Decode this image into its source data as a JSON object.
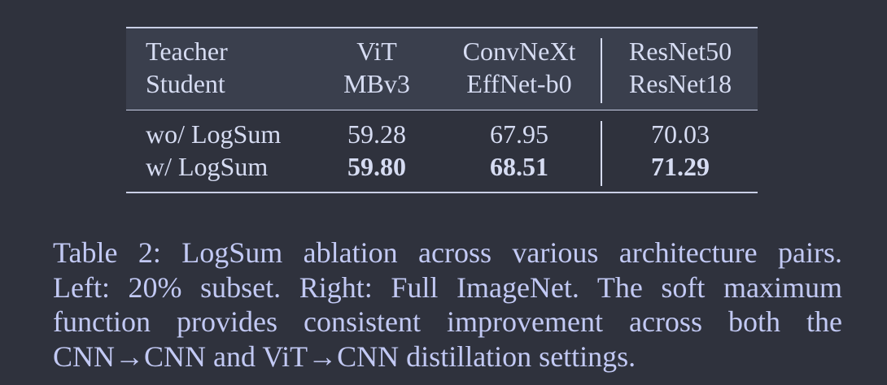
{
  "table": {
    "header": {
      "teacher_label": "Teacher",
      "student_label": "Student",
      "columns": [
        {
          "teacher": "ViT",
          "student": "MBv3"
        },
        {
          "teacher": "ConvNeXt",
          "student": "EffNet-b0"
        },
        {
          "teacher": "ResNet50",
          "student": "ResNet18"
        }
      ]
    },
    "rows": [
      {
        "label": "wo/ LogSum",
        "values": [
          "59.28",
          "67.95",
          "70.03"
        ],
        "bold": false
      },
      {
        "label": "w/ LogSum",
        "values": [
          "59.80",
          "68.51",
          "71.29"
        ],
        "bold": true
      }
    ]
  },
  "caption": {
    "lines": [
      "Table 2: LogSum ablation across various architecture pairs.",
      "Left: 20% subset. Right: Full ImageNet. The soft maximum",
      "function provides consistent improvement across both the",
      "CNN→CNN and ViT→CNN distillation settings."
    ]
  }
}
